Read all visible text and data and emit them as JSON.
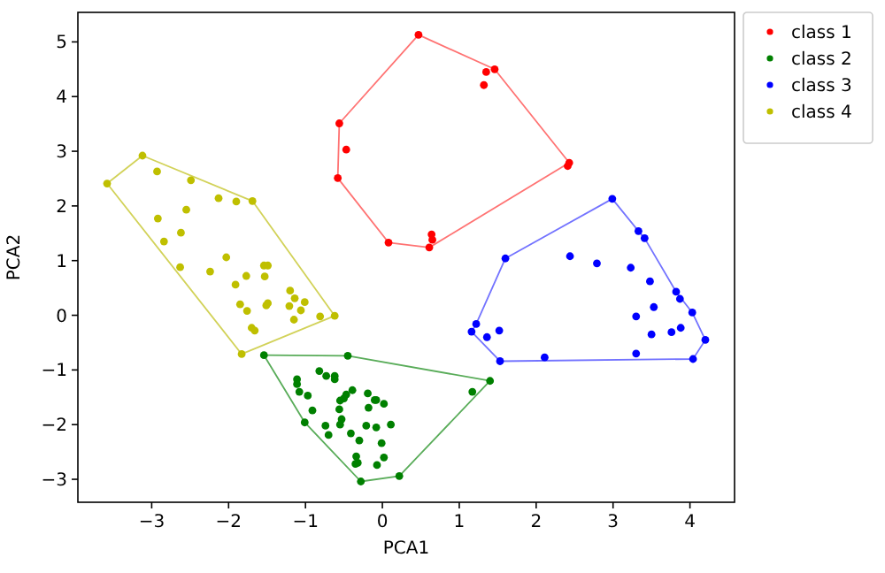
{
  "chart_data": {
    "type": "scatter",
    "xlabel": "PCA1",
    "ylabel": "PCA2",
    "xlim": [
      -3.96,
      4.58
    ],
    "ylim": [
      -3.42,
      5.54
    ],
    "xticks": [
      -3,
      -2,
      -1,
      0,
      1,
      2,
      3,
      4
    ],
    "yticks": [
      -3,
      -2,
      -1,
      0,
      1,
      2,
      3,
      4,
      5
    ],
    "legend": "top right",
    "marker": "circle",
    "series": [
      {
        "name": "class 1",
        "color": "#ff0000",
        "x": [
          0.47,
          1.46,
          1.35,
          1.32,
          -0.56,
          -0.47,
          -0.58,
          2.43,
          2.41,
          0.08,
          0.61,
          0.64,
          0.65
        ],
        "values": [
          5.13,
          4.5,
          4.45,
          4.21,
          3.51,
          3.03,
          2.51,
          2.79,
          2.73,
          1.33,
          1.24,
          1.48,
          1.38
        ]
      },
      {
        "name": "class 2",
        "color": "#008000",
        "x": [
          -1.54,
          -0.45,
          1.4,
          1.17,
          -1.01,
          -0.28,
          0.22,
          -0.82,
          -0.73,
          -0.62,
          -0.62,
          -1.11,
          -1.11,
          -1.08,
          -0.97,
          -0.39,
          -0.47,
          -0.5,
          -0.55,
          -0.19,
          -0.1,
          -0.08,
          0.02,
          -0.18,
          -0.56,
          -0.91,
          -0.53,
          -0.55,
          -0.74,
          -0.21,
          -0.08,
          0.11,
          -0.7,
          -0.41,
          -0.3,
          -0.01,
          -0.34,
          0.02,
          -0.32,
          -0.35,
          -0.07
        ],
        "values": [
          -0.73,
          -0.74,
          -1.2,
          -1.4,
          -1.96,
          -3.04,
          -2.94,
          -1.02,
          -1.11,
          -1.11,
          -1.17,
          -1.17,
          -1.26,
          -1.4,
          -1.47,
          -1.37,
          -1.45,
          -1.52,
          -1.56,
          -1.43,
          -1.55,
          -1.55,
          -1.62,
          -1.69,
          -1.72,
          -1.74,
          -1.9,
          -2.0,
          -2.02,
          -2.02,
          -2.05,
          -2.0,
          -2.19,
          -2.16,
          -2.29,
          -2.34,
          -2.58,
          -2.6,
          -2.7,
          -2.72,
          -2.74
        ]
      },
      {
        "name": "class 3",
        "color": "#0000ff",
        "x": [
          2.99,
          3.33,
          3.41,
          1.6,
          2.44,
          2.79,
          3.23,
          3.48,
          3.82,
          3.87,
          4.03,
          3.53,
          3.3,
          1.22,
          1.16,
          1.36,
          1.52,
          3.88,
          3.76,
          3.5,
          4.2,
          3.3,
          2.11,
          1.53,
          4.04
        ],
        "values": [
          2.13,
          1.54,
          1.41,
          1.04,
          1.08,
          0.95,
          0.87,
          0.62,
          0.43,
          0.3,
          0.05,
          0.15,
          -0.02,
          -0.16,
          -0.3,
          -0.4,
          -0.28,
          -0.23,
          -0.31,
          -0.35,
          -0.45,
          -0.7,
          -0.77,
          -0.84,
          -0.8
        ]
      },
      {
        "name": "class 4",
        "color": "#bfbf00",
        "x": [
          -3.12,
          -3.58,
          -2.93,
          -2.49,
          -2.13,
          -1.9,
          -1.69,
          -2.55,
          -2.92,
          -2.62,
          -2.84,
          -2.63,
          -2.03,
          -2.24,
          -1.54,
          -1.49,
          -1.77,
          -1.53,
          -1.91,
          -1.2,
          -1.14,
          -1.01,
          -1.85,
          -1.49,
          -1.51,
          -1.21,
          -1.76,
          -1.06,
          -1.15,
          -0.81,
          -0.62,
          -1.7,
          -1.66,
          -1.83
        ],
        "values": [
          2.92,
          2.41,
          2.63,
          2.47,
          2.14,
          2.08,
          2.09,
          1.93,
          1.77,
          1.51,
          1.35,
          0.88,
          1.06,
          0.8,
          0.91,
          0.91,
          0.72,
          0.71,
          0.56,
          0.45,
          0.31,
          0.24,
          0.2,
          0.22,
          0.18,
          0.17,
          0.08,
          0.09,
          -0.08,
          -0.02,
          -0.01,
          -0.23,
          -0.28,
          -0.71
        ]
      },
      {
        "type": "line",
        "marker": "none",
        "color": "#ff7373",
        "x": [
          -0.58,
          -0.56,
          0.47,
          1.46,
          2.43
        ],
        "values": [
          2.51,
          3.51,
          5.13,
          4.5,
          2.79
        ]
      },
      {
        "type": "line",
        "marker": "none",
        "color": "#ff7373",
        "x": [
          -0.58,
          0.08,
          0.61,
          2.43
        ],
        "values": [
          2.51,
          1.33,
          1.24,
          2.79
        ]
      },
      {
        "type": "line",
        "marker": "none",
        "color": "#59ac59",
        "x": [
          -1.54,
          -0.45,
          1.4
        ],
        "values": [
          -0.73,
          -0.74,
          -1.2
        ]
      },
      {
        "type": "line",
        "marker": "none",
        "color": "#59ac59",
        "x": [
          -1.54,
          -1.01,
          -0.28,
          0.22,
          1.4
        ],
        "values": [
          -0.73,
          -1.96,
          -3.04,
          -2.94,
          -1.2
        ]
      },
      {
        "type": "line",
        "marker": "none",
        "color": "#7373ff",
        "x": [
          1.16,
          1.22,
          1.6,
          2.99,
          3.33,
          3.41,
          3.82,
          4.03,
          4.2
        ],
        "values": [
          -0.3,
          -0.16,
          1.04,
          2.13,
          1.54,
          1.41,
          0.43,
          0.05,
          -0.45
        ]
      },
      {
        "type": "line",
        "marker": "none",
        "color": "#7373ff",
        "x": [
          1.16,
          1.53,
          4.04,
          4.2
        ],
        "values": [
          -0.3,
          -0.84,
          -0.8,
          -0.45
        ]
      },
      {
        "type": "line",
        "marker": "none",
        "color": "#d2d259",
        "x": [
          -3.58,
          -3.12,
          -1.69,
          -0.62
        ],
        "values": [
          2.41,
          2.92,
          2.09,
          -0.01
        ]
      },
      {
        "type": "line",
        "marker": "none",
        "color": "#d2d259",
        "x": [
          -3.58,
          -1.83,
          -0.62
        ],
        "values": [
          2.41,
          -0.71,
          -0.01
        ]
      }
    ]
  }
}
